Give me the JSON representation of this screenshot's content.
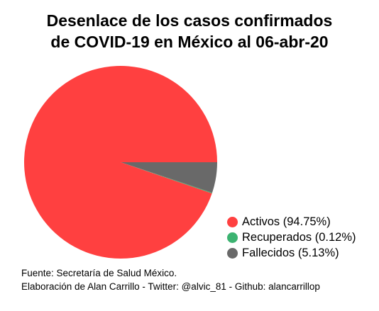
{
  "chart_data": {
    "type": "pie",
    "title": "Desenlace de los casos confirmados de COVID-19 en México al 06-abr-20",
    "title_lines": [
      "Desenlace de los casos confirmados",
      "de COVID-19 en México al 06-abr-20"
    ],
    "slices": [
      {
        "label": "Activos (94.75%)",
        "value": 94.75,
        "color": "#ff4040"
      },
      {
        "label": "Recuperados (0.12%)",
        "value": 0.12,
        "color": "#3cb371"
      },
      {
        "label": "Fallecidos (5.13%)",
        "value": 5.13,
        "color": "#696969"
      }
    ],
    "legend_position": "bottom-right"
  },
  "footer": {
    "source": "Fuente: Secretaría de Salud México.",
    "credit": "Elaboración de Alan Carrillo - Twitter: @alvic_81 - Github: alancarrillop"
  }
}
